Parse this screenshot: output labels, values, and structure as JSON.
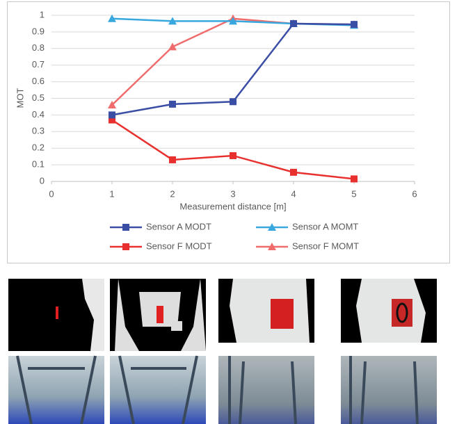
{
  "chart_data": {
    "type": "line",
    "x_label": "Measurement distance [m]",
    "y_label": "MOT",
    "x": [
      1,
      2,
      3,
      4,
      5
    ],
    "series": [
      {
        "name": "Sensor A MODT",
        "color": "#3b4ea6",
        "marker": "square",
        "values": [
          0.4,
          0.465,
          0.48,
          0.95,
          0.945
        ]
      },
      {
        "name": "Sensor A MOMT",
        "color": "#38a8de",
        "marker": "triangle",
        "values": [
          0.98,
          0.965,
          0.965,
          0.95,
          0.94
        ]
      },
      {
        "name": "Sensor F MODT",
        "color": "#e8312f",
        "marker": "square",
        "values": [
          0.37,
          0.13,
          0.155,
          0.055,
          0.015
        ]
      },
      {
        "name": "Sensor F MOMT",
        "color": "#f06c6c",
        "marker": "triangle",
        "values": [
          0.46,
          0.81,
          0.98,
          0.95,
          0.945
        ]
      }
    ],
    "xlim": [
      0,
      6
    ],
    "xticks": [
      0,
      1,
      2,
      3,
      4,
      5,
      6
    ],
    "ylim": [
      0,
      1
    ],
    "yticks": [
      0,
      0.1,
      0.2,
      0.3,
      0.4,
      0.5,
      0.6,
      0.7,
      0.8,
      0.9,
      1
    ],
    "grid": true
  }
}
